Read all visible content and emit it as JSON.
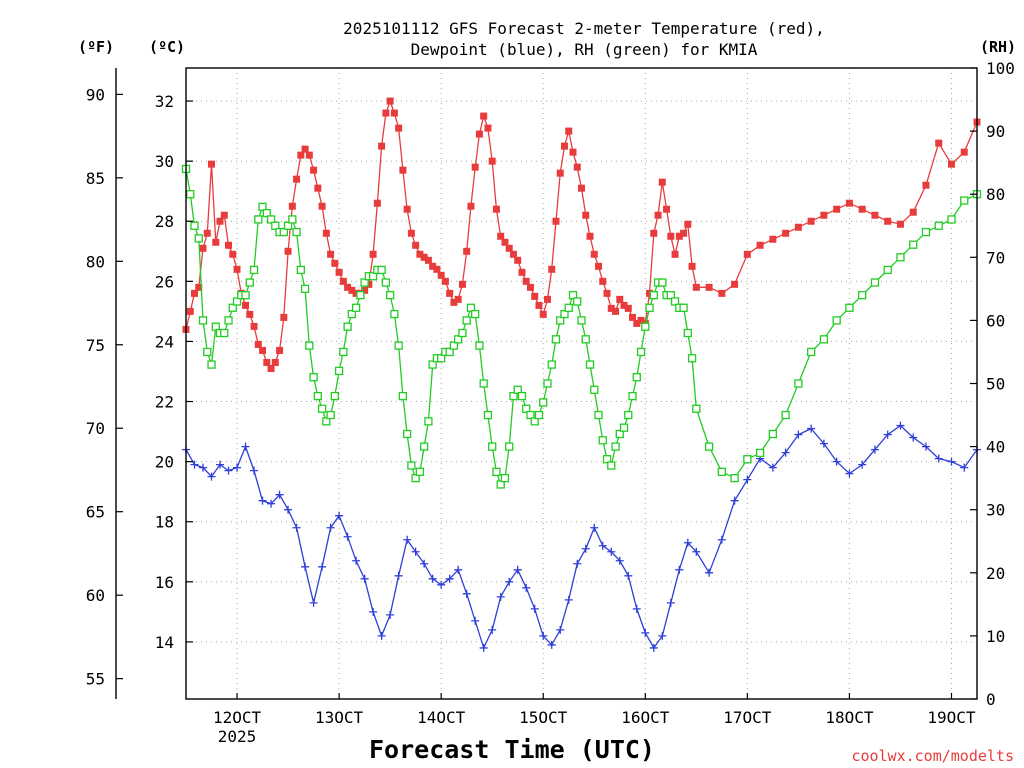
{
  "chart_data": {
    "type": "line",
    "title_line1": "2025101112 GFS Forecast 2-meter Temperature (red),",
    "title_line2": "Dewpoint (blue), RH (green) for KMIA",
    "xlabel": "Forecast Time (UTC)",
    "credit": "coolwx.com/modelts",
    "unit_labels": {
      "fahrenheit": "(ºF)",
      "celsius": "(ºC)",
      "rh": "(RH)"
    },
    "x_unit": "hours since 2025-10-11 12Z",
    "xlim": [
      0,
      186
    ],
    "x_ticks": [
      {
        "x": 12,
        "label": "12OCT",
        "sublabel": "2025"
      },
      {
        "x": 36,
        "label": "13OCT"
      },
      {
        "x": 60,
        "label": "14OCT"
      },
      {
        "x": 84,
        "label": "15OCT"
      },
      {
        "x": 108,
        "label": "16OCT"
      },
      {
        "x": 132,
        "label": "17OCT"
      },
      {
        "x": 156,
        "label": "18OCT"
      },
      {
        "x": 180,
        "label": "19OCT"
      }
    ],
    "celsius_axis": {
      "ylim": [
        12.1,
        33.1
      ],
      "ticks": [
        14,
        16,
        18,
        20,
        22,
        24,
        26,
        28,
        30,
        32
      ]
    },
    "fahrenheit_axis": {
      "ylim": [
        53.78,
        91.58
      ],
      "ticks": [
        55,
        60,
        65,
        70,
        75,
        80,
        85,
        90
      ]
    },
    "rh_axis": {
      "ylim": [
        0,
        100
      ],
      "ticks": [
        0,
        10,
        20,
        30,
        40,
        50,
        60,
        70,
        80,
        90,
        100
      ]
    },
    "series": [
      {
        "name": "2-meter Temperature",
        "axis": "celsius",
        "color": "#e83c3c",
        "marker": "filled-square",
        "x": [
          0,
          1,
          2,
          3,
          4,
          5,
          6,
          7,
          8,
          9,
          10,
          11,
          12,
          13,
          14,
          15,
          16,
          17,
          18,
          19,
          20,
          21,
          22,
          23,
          24,
          25,
          26,
          27,
          28,
          29,
          30,
          31,
          32,
          33,
          34,
          35,
          36,
          37,
          38,
          39,
          40,
          41,
          42,
          43,
          44,
          45,
          46,
          47,
          48,
          49,
          50,
          51,
          52,
          53,
          54,
          55,
          56,
          57,
          58,
          59,
          60,
          61,
          62,
          63,
          64,
          65,
          66,
          67,
          68,
          69,
          70,
          71,
          72,
          73,
          74,
          75,
          76,
          77,
          78,
          79,
          80,
          81,
          82,
          83,
          84,
          85,
          86,
          87,
          88,
          89,
          90,
          91,
          92,
          93,
          94,
          95,
          96,
          97,
          98,
          99,
          100,
          101,
          102,
          103,
          104,
          105,
          106,
          107,
          108,
          109,
          110,
          111,
          112,
          113,
          114,
          115,
          116,
          117,
          118,
          119,
          120,
          123,
          126,
          129,
          132,
          135,
          138,
          141,
          144,
          147,
          150,
          153,
          156,
          159,
          162,
          165,
          168,
          171,
          174,
          177,
          180,
          183,
          186
        ],
        "values": [
          24.4,
          25.0,
          25.6,
          25.8,
          27.1,
          27.6,
          29.9,
          27.3,
          28.0,
          28.2,
          27.2,
          26.9,
          26.4,
          25.6,
          25.2,
          24.9,
          24.5,
          23.9,
          23.7,
          23.3,
          23.1,
          23.3,
          23.7,
          24.8,
          27.0,
          28.5,
          29.4,
          30.2,
          30.4,
          30.2,
          29.7,
          29.1,
          28.5,
          27.6,
          26.9,
          26.6,
          26.3,
          26.0,
          25.8,
          25.7,
          25.6,
          25.6,
          25.7,
          25.9,
          26.9,
          28.6,
          30.5,
          31.6,
          32.0,
          31.6,
          31.1,
          29.7,
          28.4,
          27.6,
          27.2,
          26.9,
          26.8,
          26.7,
          26.5,
          26.4,
          26.2,
          26.0,
          25.6,
          25.3,
          25.4,
          25.9,
          27.0,
          28.5,
          29.8,
          30.9,
          31.5,
          31.1,
          30.0,
          28.4,
          27.5,
          27.3,
          27.1,
          26.9,
          26.7,
          26.3,
          26.0,
          25.8,
          25.5,
          25.2,
          24.9,
          25.4,
          26.4,
          28.0,
          29.6,
          30.5,
          31.0,
          30.3,
          29.8,
          29.1,
          28.2,
          27.5,
          26.9,
          26.5,
          26.0,
          25.6,
          25.1,
          25.0,
          25.4,
          25.2,
          25.1,
          24.8,
          24.6,
          24.7,
          24.6,
          25.6,
          27.6,
          28.2,
          29.3,
          28.4,
          27.5,
          26.9,
          27.5,
          27.6,
          27.9,
          26.5,
          25.8,
          25.8,
          25.6,
          25.9,
          26.9,
          27.2,
          27.4,
          27.6,
          27.8,
          28.0,
          28.2,
          28.4,
          28.6,
          28.4,
          28.2,
          28.0,
          27.9,
          28.3,
          29.2,
          30.6,
          29.9,
          30.3,
          31.3
        ]
      },
      {
        "name": "Dewpoint",
        "axis": "celsius",
        "color": "#2f3fd8",
        "marker": "plus",
        "x": [
          0,
          2,
          4,
          6,
          8,
          10,
          12,
          14,
          16,
          18,
          20,
          22,
          24,
          26,
          28,
          30,
          32,
          34,
          36,
          38,
          40,
          42,
          44,
          46,
          48,
          50,
          52,
          54,
          56,
          58,
          60,
          62,
          64,
          66,
          68,
          70,
          72,
          74,
          76,
          78,
          80,
          82,
          84,
          86,
          88,
          90,
          92,
          94,
          96,
          98,
          100,
          102,
          104,
          106,
          108,
          110,
          112,
          114,
          116,
          118,
          120,
          123,
          126,
          129,
          132,
          135,
          138,
          141,
          144,
          147,
          150,
          153,
          156,
          159,
          162,
          165,
          168,
          171,
          174,
          177,
          180,
          183,
          186
        ],
        "values": [
          20.4,
          19.9,
          19.8,
          19.5,
          19.9,
          19.7,
          19.8,
          20.5,
          19.7,
          18.7,
          18.6,
          18.9,
          18.4,
          17.8,
          16.5,
          15.3,
          16.5,
          17.8,
          18.2,
          17.5,
          16.7,
          16.1,
          15.0,
          14.2,
          14.9,
          16.2,
          17.4,
          17.0,
          16.6,
          16.1,
          15.9,
          16.1,
          16.4,
          15.6,
          14.7,
          13.8,
          14.4,
          15.5,
          16.0,
          16.4,
          15.8,
          15.1,
          14.2,
          13.9,
          14.4,
          15.4,
          16.6,
          17.1,
          17.8,
          17.2,
          17.0,
          16.7,
          16.2,
          15.1,
          14.3,
          13.8,
          14.2,
          15.3,
          16.4,
          17.3,
          17.0,
          16.3,
          17.4,
          18.7,
          19.4,
          20.1,
          19.8,
          20.3,
          20.9,
          21.1,
          20.6,
          20.0,
          19.6,
          19.9,
          20.4,
          20.9,
          21.2,
          20.8,
          20.5,
          20.1,
          20.0,
          19.8,
          20.4
        ]
      },
      {
        "name": "RH",
        "axis": "rh",
        "color": "#22cc22",
        "marker": "open-square",
        "x": [
          0,
          1,
          2,
          3,
          4,
          5,
          6,
          7,
          8,
          9,
          10,
          11,
          12,
          13,
          14,
          15,
          16,
          17,
          18,
          19,
          20,
          21,
          22,
          23,
          24,
          25,
          26,
          27,
          28,
          29,
          30,
          31,
          32,
          33,
          34,
          35,
          36,
          37,
          38,
          39,
          40,
          41,
          42,
          43,
          44,
          45,
          46,
          47,
          48,
          49,
          50,
          51,
          52,
          53,
          54,
          55,
          56,
          57,
          58,
          59,
          60,
          61,
          62,
          63,
          64,
          65,
          66,
          67,
          68,
          69,
          70,
          71,
          72,
          73,
          74,
          75,
          76,
          77,
          78,
          79,
          80,
          81,
          82,
          83,
          84,
          85,
          86,
          87,
          88,
          89,
          90,
          91,
          92,
          93,
          94,
          95,
          96,
          97,
          98,
          99,
          100,
          101,
          102,
          103,
          104,
          105,
          106,
          107,
          108,
          109,
          110,
          111,
          112,
          113,
          114,
          115,
          116,
          117,
          118,
          119,
          120,
          123,
          126,
          129,
          132,
          135,
          138,
          141,
          144,
          147,
          150,
          153,
          156,
          159,
          162,
          165,
          168,
          171,
          174,
          177,
          180,
          183,
          186
        ],
        "values": [
          84,
          80,
          75,
          73,
          60,
          55,
          53,
          59,
          58,
          58,
          60,
          62,
          63,
          64,
          64,
          66,
          68,
          76,
          78,
          77,
          76,
          75,
          74,
          74,
          75,
          76,
          74,
          68,
          65,
          56,
          51,
          48,
          46,
          44,
          45,
          48,
          52,
          55,
          59,
          61,
          62,
          64,
          66,
          67,
          67,
          68,
          68,
          66,
          64,
          61,
          56,
          48,
          42,
          37,
          35,
          36,
          40,
          44,
          53,
          54,
          54,
          55,
          55,
          56,
          57,
          58,
          60,
          62,
          61,
          56,
          50,
          45,
          40,
          36,
          34,
          35,
          40,
          48,
          49,
          48,
          46,
          45,
          44,
          45,
          47,
          50,
          53,
          57,
          60,
          61,
          62,
          64,
          63,
          60,
          57,
          53,
          49,
          45,
          41,
          38,
          37,
          40,
          42,
          43,
          45,
          48,
          51,
          55,
          59,
          62,
          64,
          66,
          66,
          64,
          64,
          63,
          62,
          62,
          58,
          54,
          46,
          40,
          36,
          35,
          38,
          39,
          42,
          45,
          50,
          55,
          57,
          60,
          62,
          64,
          66,
          68,
          70,
          72,
          74,
          75,
          76,
          79,
          80
        ]
      }
    ]
  }
}
